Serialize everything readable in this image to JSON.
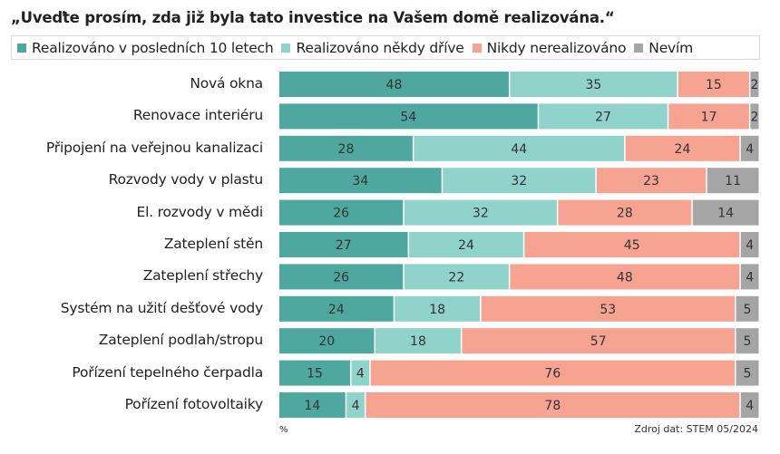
{
  "chart_data": {
    "type": "bar",
    "orientation": "horizontal",
    "stacked": true,
    "title": "„Uveďte prosím, zda již byla tato investice na Vašem domě realizována.“",
    "xlabel": "%",
    "ylabel": "",
    "xlim": [
      0,
      100
    ],
    "grid": false,
    "legend_position": "top",
    "source": "Zdroj dat: STEM 05/2024",
    "categories": [
      "Nová okna",
      "Renovace interiéru",
      "Připojení na veřejnou kanalizaci",
      "Rozvody vody v plastu",
      "El. rozvody v mědi",
      "Zateplení stěn",
      "Zateplení střechy",
      "Systém na užití dešťové vody",
      "Zateplení podlah/stropu",
      "Pořízení tepelného čerpadla",
      "Pořízení fotovoltaiky"
    ],
    "series": [
      {
        "name": "Realizováno v posledních 10 letech",
        "color": "#4fa89f",
        "values": [
          48,
          54,
          28,
          34,
          26,
          27,
          26,
          24,
          20,
          15,
          14
        ]
      },
      {
        "name": "Realizováno někdy dříve",
        "color": "#8fd3cb",
        "values": [
          35,
          27,
          44,
          32,
          32,
          24,
          22,
          18,
          18,
          4,
          4
        ]
      },
      {
        "name": "Nikdy nerealizováno",
        "color": "#f7a391",
        "values": [
          15,
          17,
          24,
          23,
          28,
          45,
          48,
          53,
          57,
          76,
          78
        ]
      },
      {
        "name": "Nevím",
        "color": "#a5a5a5",
        "values": [
          2,
          2,
          4,
          11,
          14,
          4,
          4,
          5,
          5,
          5,
          4
        ]
      }
    ]
  }
}
